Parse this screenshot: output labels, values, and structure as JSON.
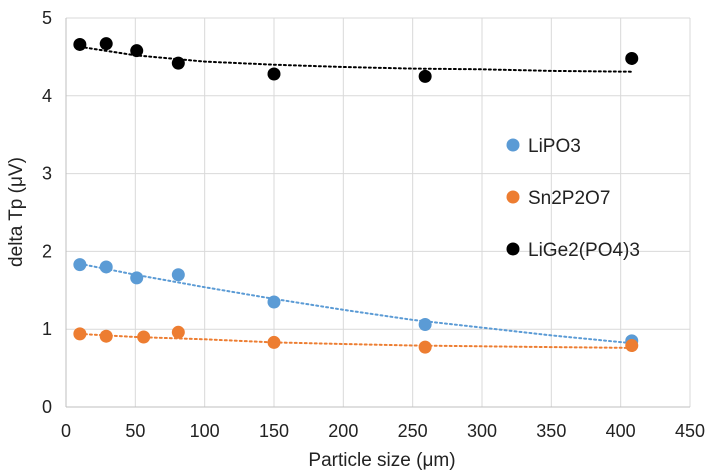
{
  "chart_data": {
    "type": "scatter",
    "xlabel": "Particle size (μm)",
    "ylabel": "delta Tp (μV)",
    "xlim": [
      0,
      450
    ],
    "ylim": [
      0,
      5
    ],
    "x_ticks": [
      "0",
      "50",
      "100",
      "150",
      "200",
      "250",
      "300",
      "350",
      "400",
      "450"
    ],
    "y_ticks": [
      "0",
      "1",
      "2",
      "3",
      "4",
      "5"
    ],
    "grid": true,
    "legend_position": "right-inside",
    "trendlines": true,
    "series": [
      {
        "name": "LiPO3",
        "color": "#5B9BD5",
        "x": [
          10,
          29,
          51,
          81,
          150,
          259,
          408
        ],
        "y": [
          1.83,
          1.8,
          1.66,
          1.7,
          1.35,
          1.06,
          0.85
        ],
        "trend": [
          [
            10,
            1.84
          ],
          [
            50,
            1.7
          ],
          [
            100,
            1.54
          ],
          [
            150,
            1.39
          ],
          [
            200,
            1.25
          ],
          [
            250,
            1.12
          ],
          [
            300,
            1.02
          ],
          [
            350,
            0.92
          ],
          [
            408,
            0.82
          ]
        ]
      },
      {
        "name": "Sn2P2O7",
        "color": "#ED7D31",
        "x": [
          10,
          29,
          56,
          81,
          150,
          259,
          408
        ],
        "y": [
          0.94,
          0.91,
          0.9,
          0.96,
          0.83,
          0.77,
          0.79
        ],
        "trend": [
          [
            10,
            0.94
          ],
          [
            50,
            0.9
          ],
          [
            100,
            0.87
          ],
          [
            150,
            0.83
          ],
          [
            200,
            0.81
          ],
          [
            250,
            0.79
          ],
          [
            300,
            0.78
          ],
          [
            350,
            0.77
          ],
          [
            408,
            0.76
          ]
        ]
      },
      {
        "name": "LiGe2(PO4)3",
        "color": "#000000",
        "x": [
          10,
          29,
          51,
          81,
          150,
          259,
          408
        ],
        "y": [
          4.66,
          4.67,
          4.58,
          4.42,
          4.28,
          4.25,
          4.48
        ],
        "trend": [
          [
            10,
            4.63
          ],
          [
            50,
            4.52
          ],
          [
            100,
            4.44
          ],
          [
            150,
            4.4
          ],
          [
            200,
            4.37
          ],
          [
            250,
            4.35
          ],
          [
            300,
            4.34
          ],
          [
            350,
            4.32
          ],
          [
            408,
            4.31
          ]
        ]
      }
    ]
  }
}
